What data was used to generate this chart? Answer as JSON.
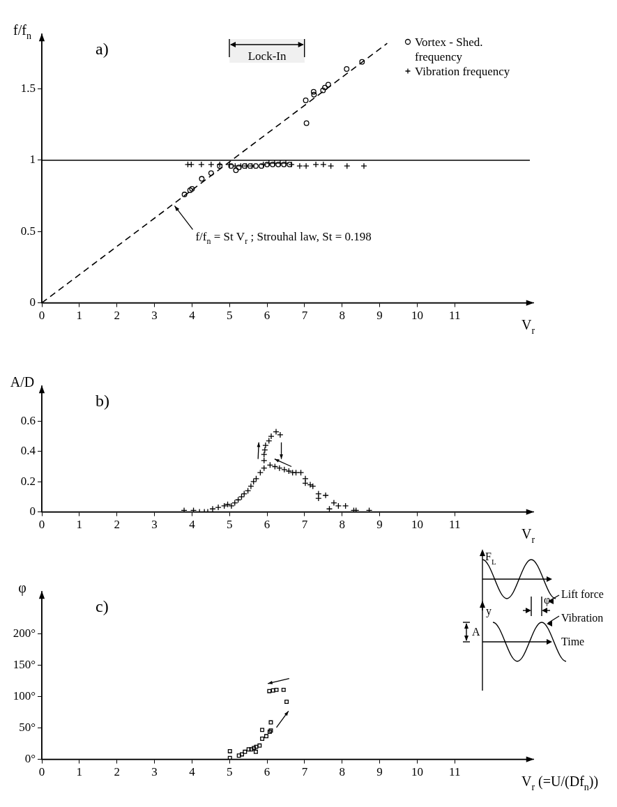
{
  "chart_data": [
    {
      "type": "scatter",
      "title": "a)",
      "xlabel": "V$_{r}$",
      "ylabel": "f/f$_{n}$",
      "xlim": [
        0,
        13
      ],
      "xticks": [
        0,
        1,
        2,
        3,
        4,
        5,
        6,
        7,
        8,
        9,
        10,
        11
      ],
      "ylim": [
        0,
        1.85
      ],
      "yticks": [
        0,
        0.5,
        1,
        1.5
      ],
      "legend": "top right",
      "series": [
        {
          "name": "Vortex - Shed. frequency",
          "type": "scatter",
          "marker": "circle",
          "color": "#000000",
          "x": [
            3.8,
            3.95,
            4.0,
            4.26,
            4.51,
            4.74,
            5.04,
            5.17,
            5.25,
            5.4,
            5.55,
            5.7,
            5.85,
            6.0,
            6.15,
            6.3,
            6.45,
            6.6,
            7.03,
            7.05,
            7.24,
            7.25,
            7.49,
            7.54,
            7.63,
            8.12,
            8.53
          ],
          "values": [
            0.76,
            0.79,
            0.8,
            0.87,
            0.91,
            0.96,
            0.96,
            0.93,
            0.95,
            0.96,
            0.96,
            0.96,
            0.96,
            0.97,
            0.97,
            0.97,
            0.97,
            0.97,
            1.42,
            1.26,
            1.48,
            1.46,
            1.49,
            1.51,
            1.53,
            1.64,
            1.69
          ]
        },
        {
          "name": "Vibration frequency",
          "type": "scatter",
          "marker": "cross",
          "color": "#000000",
          "x": [
            3.89,
            3.98,
            4.25,
            4.51,
            4.74,
            5.0,
            5.15,
            5.3,
            5.45,
            5.6,
            5.75,
            5.9,
            6.05,
            6.2,
            6.35,
            6.5,
            6.65,
            6.87,
            7.04,
            7.3,
            7.5,
            7.7,
            8.13,
            8.58
          ],
          "values": [
            0.97,
            0.97,
            0.97,
            0.97,
            0.97,
            0.97,
            0.96,
            0.96,
            0.96,
            0.96,
            null,
            0.97,
            0.98,
            0.98,
            0.98,
            0.98,
            0.97,
            0.96,
            0.96,
            0.97,
            0.97,
            0.96,
            0.96,
            0.96
          ]
        },
        {
          "type": "line",
          "marker": "none",
          "line_style": "dashed",
          "color": "#000000",
          "x": [
            0,
            9.2
          ],
          "values": [
            0,
            1.82
          ]
        }
      ],
      "ref_lines": [
        {
          "axis": "y",
          "value": 1,
          "color": "#000000"
        }
      ],
      "bands": [
        {
          "axis": "x",
          "from": 5,
          "to": 7,
          "label": "Lock-In",
          "color": "#f0f0f0"
        }
      ],
      "annotations": [
        {
          "text": "f/f$_{n}$ = St V$_{r}$ ; Strouhal law, St = 0.198",
          "x": 3.5,
          "y": 0.69
        }
      ]
    },
    {
      "type": "scatter",
      "title": "b)",
      "xlabel": "V$_{r}$",
      "ylabel": "A/D",
      "xlim": [
        0,
        13
      ],
      "xticks": [
        0,
        1,
        2,
        3,
        4,
        5,
        6,
        7,
        8,
        9,
        10,
        11
      ],
      "ylim": [
        0,
        0.8
      ],
      "yticks": [
        0,
        0.2,
        0.4,
        0.6
      ],
      "series": [
        {
          "type": "scatter",
          "marker": "cross",
          "color": "#000000",
          "x": [
            3.79,
            4.04,
            4.2,
            4.33,
            4.42,
            4.55,
            4.7,
            4.86,
            4.95,
            5.05,
            5.14,
            5.23,
            5.32,
            5.39,
            5.49,
            5.57,
            5.64,
            5.71,
            5.82,
            5.92,
            5.92,
            5.92,
            5.94,
            5.96,
            6.05,
            6.11,
            6.24,
            6.35,
            6.08,
            6.21,
            6.33,
            6.46,
            6.58,
            6.68,
            6.77,
            6.9,
            7.02,
            7.02,
            7.15,
            7.22,
            7.37,
            7.37,
            7.56,
            7.66,
            7.78,
            7.9,
            8.09,
            8.31,
            8.37,
            8.72
          ],
          "values": [
            0.01,
            0.01,
            0.0,
            0.0,
            0.0,
            0.02,
            0.03,
            0.04,
            0.05,
            0.04,
            0.06,
            0.08,
            0.1,
            0.12,
            0.14,
            0.17,
            0.2,
            0.22,
            0.26,
            0.29,
            0.34,
            0.38,
            0.41,
            0.44,
            0.47,
            0.5,
            0.53,
            0.51,
            0.31,
            0.3,
            0.29,
            0.28,
            0.27,
            0.26,
            0.26,
            0.26,
            0.22,
            0.19,
            0.18,
            0.17,
            0.12,
            0.09,
            0.11,
            0.02,
            0.06,
            0.04,
            0.04,
            0.01,
            0.01,
            0.01
          ]
        }
      ]
    },
    {
      "type": "scatter",
      "title": "c)",
      "xlabel": "V$_{r}$ (=U/(Df$_{n}$))",
      "ylabel": "φ",
      "xlim": [
        0,
        13
      ],
      "xticks": [
        0,
        1,
        2,
        3,
        4,
        5,
        6,
        7,
        8,
        9,
        10,
        11
      ],
      "ylim": [
        0,
        260
      ],
      "yticks": [
        {
          "value": 0,
          "label": "0°"
        },
        {
          "value": 50,
          "label": "50°"
        },
        {
          "value": 100,
          "label": "100°"
        },
        {
          "value": 150,
          "label": "150°"
        },
        {
          "value": 200,
          "label": "200°"
        }
      ],
      "series": [
        {
          "type": "scatter",
          "marker": "square",
          "color": "#000000",
          "x": [
            5.01,
            5.01,
            5.25,
            5.33,
            5.41,
            5.51,
            5.58,
            5.65,
            5.7,
            5.71,
            5.8,
            5.87,
            5.87,
            5.98,
            6.07,
            6.1,
            6.1,
            6.06,
            6.16,
            6.25,
            6.44,
            6.52
          ],
          "values": [
            13,
            2,
            6,
            8,
            12,
            16,
            16,
            18,
            12,
            20,
            22,
            33,
            47,
            37,
            44,
            46,
            59,
            109,
            110,
            111,
            111,
            92
          ]
        }
      ],
      "annotations": [
        "F$_{L}$",
        "Lift force",
        "y",
        "A",
        "φ",
        "Vibration",
        "Time"
      ]
    }
  ]
}
